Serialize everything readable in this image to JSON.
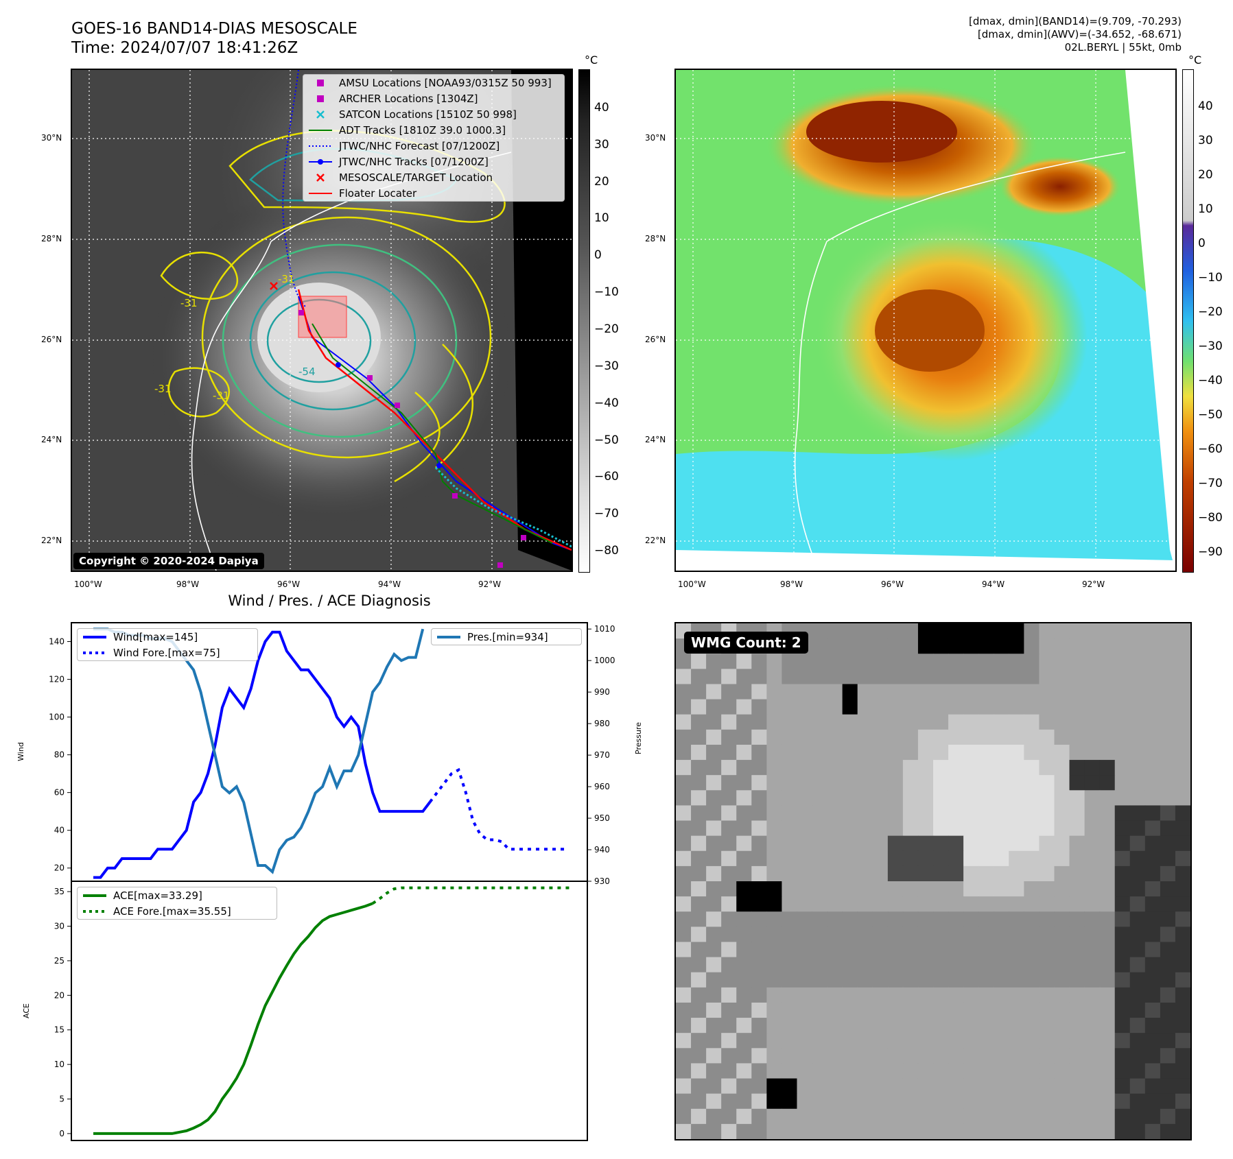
{
  "header": {
    "title_line1": "GOES-16 BAND14-DIAS MESOSCALE",
    "title_line2": "Time: 2024/07/07 18:41:26Z",
    "info_line1": "[dmax, dmin](BAND14)=(9.709, -70.293)",
    "info_line2": "[dmax, dmin](AWV)=(-34.652, -68.671)",
    "info_line3": "02L.BERYL | 55kt, 0mb"
  },
  "map_axes": {
    "lat_ticks": [
      "30°N",
      "28°N",
      "26°N",
      "24°N",
      "22°N"
    ],
    "lon_ticks": [
      "100°W",
      "98°W",
      "96°W",
      "94°W",
      "92°W"
    ]
  },
  "colorbar_left": {
    "unit": "°C",
    "ticks": [
      "40",
      "30",
      "20",
      "10",
      "0",
      "−10",
      "−20",
      "−30",
      "−40",
      "−50",
      "−60",
      "−70",
      "−80"
    ]
  },
  "colorbar_right": {
    "unit": "°C",
    "ticks": [
      "40",
      "30",
      "20",
      "10",
      "0",
      "−10",
      "−20",
      "−30",
      "−40",
      "−50",
      "−60",
      "−70",
      "−80",
      "−90"
    ]
  },
  "map_legend": [
    {
      "label": "AMSU Locations [NOAA93/0315Z 50 993]",
      "symbol": "square",
      "color": "#c000c0"
    },
    {
      "label": "ARCHER Locations [1304Z]",
      "symbol": "square",
      "color": "#c000c0"
    },
    {
      "label": "SATCON Locations [1510Z 50 998]",
      "symbol": "x",
      "color": "#17becf"
    },
    {
      "label": "ADT Tracks [1810Z 39.0 1000.3]",
      "symbol": "line",
      "color": "#008000"
    },
    {
      "label": "JTWC/NHC Forecast [07/1200Z]",
      "symbol": "dotted",
      "color": "#0000ff"
    },
    {
      "label": "JTWC/NHC Tracks [07/1200Z]",
      "symbol": "line-dot",
      "color": "#0000ff"
    },
    {
      "label": "MESOSCALE/TARGET Location",
      "symbol": "x",
      "color": "#ff0000"
    },
    {
      "label": "Floater Locater",
      "symbol": "line",
      "color": "#ff0000"
    }
  ],
  "copyright": "Copyright © 2020-2024 Dapiya",
  "contour_labels": [
    "-31",
    "-31",
    "-31",
    "-54",
    "-31"
  ],
  "diag_title": "Wind / Pres. / ACE Diagnosis",
  "wmg_label": "WMG Count: 2",
  "chart_data": [
    {
      "type": "line",
      "title": "Wind / Pres. / ACE Diagnosis",
      "ylabel": "Wind",
      "ylabel_right": "Pressure",
      "ylim": [
        13,
        150
      ],
      "ylim_right": [
        930,
        1012
      ],
      "yticks": [
        20,
        40,
        60,
        80,
        100,
        120,
        140
      ],
      "yticks_right": [
        930,
        940,
        950,
        960,
        970,
        980,
        990,
        1000,
        1010
      ],
      "series": [
        {
          "name": "Wind[max=145]",
          "color": "#0000ff",
          "style": "solid",
          "values": [
            15,
            15,
            20,
            20,
            25,
            25,
            25,
            25,
            25,
            30,
            30,
            30,
            35,
            40,
            55,
            60,
            70,
            85,
            105,
            115,
            110,
            105,
            115,
            130,
            140,
            145,
            145,
            135,
            130,
            125,
            125,
            120,
            115,
            110,
            100,
            95,
            100,
            95,
            75,
            60,
            50,
            50,
            50,
            50,
            50,
            50,
            50,
            55
          ]
        },
        {
          "name": "Wind Fore.[max=75]",
          "color": "#0000ff",
          "style": "dotted",
          "x_start": 47,
          "values": [
            55,
            60,
            65,
            70,
            72,
            60,
            45,
            38,
            35,
            35,
            34,
            30,
            30,
            30,
            30,
            30,
            30,
            30,
            30,
            30
          ]
        },
        {
          "name": "Pres.[min=934]",
          "color": "#1f77b4",
          "style": "solid",
          "axis": "right",
          "values": [
            1010,
            1010,
            1010,
            1009,
            1009,
            1008,
            1008,
            1008,
            1007,
            1007,
            1007,
            1006,
            1003,
            1000,
            997,
            990,
            980,
            970,
            960,
            958,
            960,
            955,
            945,
            935,
            935,
            933,
            940,
            943,
            944,
            947,
            952,
            958,
            960,
            966,
            960,
            965,
            965,
            970,
            980,
            990,
            993,
            998,
            1002,
            1000,
            1001,
            1001,
            1010
          ]
        }
      ],
      "x_count": 67
    },
    {
      "type": "line",
      "ylabel": "ACE",
      "ylim": [
        -1,
        36.5
      ],
      "yticks": [
        0,
        5,
        10,
        15,
        20,
        25,
        30,
        35
      ],
      "series": [
        {
          "name": "ACE[max=33.29]",
          "color": "#008000",
          "style": "solid",
          "values": [
            0,
            0,
            0,
            0,
            0,
            0,
            0,
            0,
            0,
            0,
            0,
            0,
            0.2,
            0.4,
            0.8,
            1.3,
            2.0,
            3.2,
            5.0,
            6.4,
            8.0,
            10.0,
            12.8,
            15.8,
            18.5,
            20.5,
            22.5,
            24.3,
            26.0,
            27.4,
            28.5,
            29.8,
            30.8,
            31.4,
            31.7,
            32.0,
            32.3,
            32.6,
            32.9,
            33.29
          ]
        },
        {
          "name": "ACE Fore.[max=35.55]",
          "color": "#008000",
          "style": "dotted",
          "x_start": 39,
          "values": [
            33.29,
            34.0,
            34.8,
            35.4,
            35.55,
            35.55,
            35.55,
            35.55,
            35.55,
            35.55,
            35.55,
            35.55,
            35.55,
            35.55,
            35.55,
            35.55,
            35.55,
            35.55,
            35.55,
            35.55,
            35.55,
            35.55,
            35.55,
            35.55,
            35.55,
            35.55,
            35.55,
            35.55,
            35.55
          ]
        }
      ],
      "x_count": 67
    }
  ]
}
